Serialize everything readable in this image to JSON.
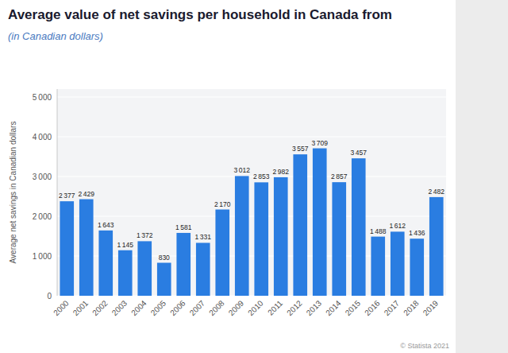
{
  "chart_data": {
    "type": "bar",
    "title": "Average value of net savings per household in Canada from",
    "subtitle": "(in Canadian dollars)",
    "ylabel": "Average net savings in Canadian dollars",
    "annotations": [
      "© Statista 2021"
    ],
    "categories": [
      "2000",
      "2001",
      "2002",
      "2003",
      "2004",
      "2005",
      "2006",
      "2007",
      "2008",
      "2009",
      "2010",
      "2011",
      "2012",
      "2013",
      "2014",
      "2015",
      "2016",
      "2017",
      "2018",
      "2019"
    ],
    "values": [
      2377,
      2429,
      1643,
      1145,
      1372,
      830,
      1581,
      1331,
      2170,
      3012,
      2853,
      2982,
      3557,
      3709,
      2857,
      3457,
      1488,
      1612,
      1436,
      2482
    ],
    "value_labels": [
      "2 377",
      "2 429",
      "1 643",
      "1 145",
      "1 372",
      "830",
      "1 581",
      "1 331",
      "2 170",
      "3 012",
      "2 853",
      "2 982",
      "3 557",
      "3 709",
      "2 857",
      "3 457",
      "1 488",
      "1 612",
      "1 436",
      "2 482"
    ],
    "color": "#2a7de1",
    "ylim": [
      0,
      5200
    ],
    "yticks": [
      0,
      {
        "value": 1000,
        "label": "1 000"
      },
      {
        "value": 2000,
        "label": "2 000"
      },
      {
        "value": 3000,
        "label": "3 000"
      },
      {
        "value": 4000,
        "label": "4 000"
      },
      {
        "value": 5000,
        "label": "5 000"
      }
    ],
    "grid": true,
    "data_labels": true
  }
}
